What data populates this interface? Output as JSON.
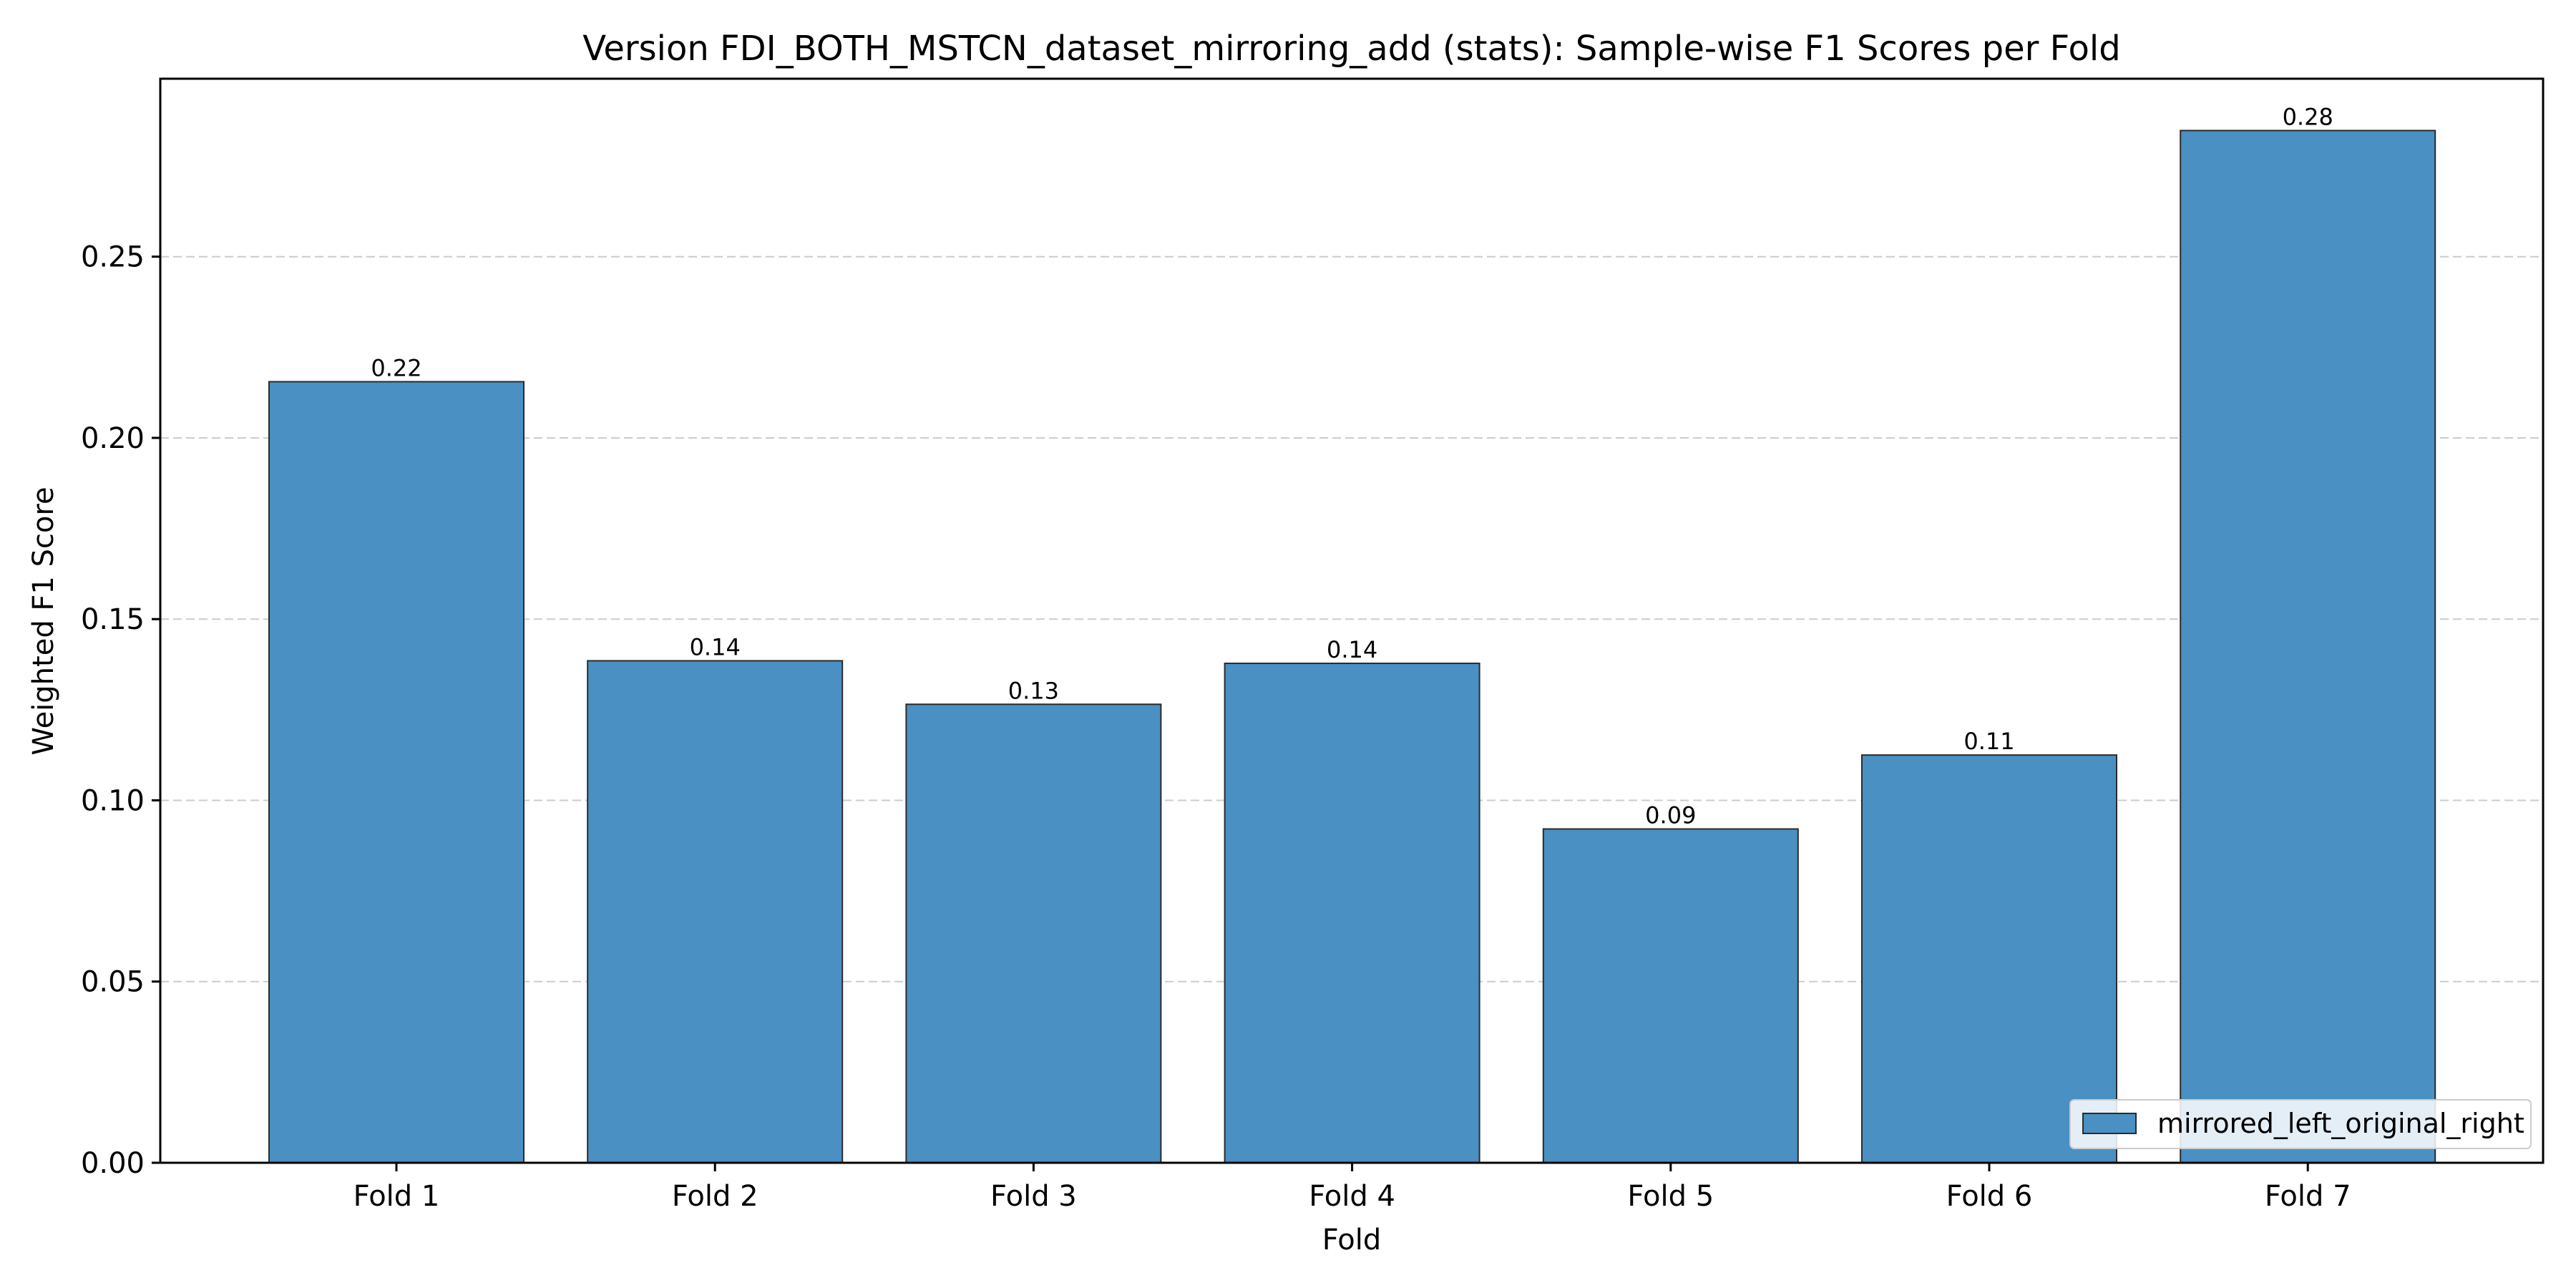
{
  "chart_data": {
    "type": "bar",
    "title": "Version FDI_BOTH_MSTCN_dataset_mirroring_add (stats): Sample-wise F1 Scores per Fold",
    "xlabel": "Fold",
    "ylabel": "Weighted F1 Score",
    "categories": [
      "Fold 1",
      "Fold 2",
      "Fold 3",
      "Fold 4",
      "Fold 5",
      "Fold 6",
      "Fold 7"
    ],
    "series": [
      {
        "name": "mirrored_left_original_right",
        "values": [
          0.2155,
          0.1385,
          0.1265,
          0.1378,
          0.0921,
          0.1125,
          0.2848
        ],
        "value_labels": [
          "0.22",
          "0.14",
          "0.13",
          "0.14",
          "0.09",
          "0.11",
          "0.28"
        ],
        "color": "#4a90c2"
      }
    ],
    "yticks": [
      0.0,
      0.05,
      0.1,
      0.15,
      0.2,
      0.25
    ],
    "ytick_labels": [
      "0.00",
      "0.05",
      "0.10",
      "0.15",
      "0.20",
      "0.25"
    ],
    "ylim": [
      0,
      0.2991
    ],
    "grid": "y-dashed",
    "legend_position": "lower-right",
    "colors": {
      "bar": "#4a90c2",
      "bar_edge": "#2b2b2b",
      "grid": "#cccccc",
      "axis": "#000000"
    }
  }
}
